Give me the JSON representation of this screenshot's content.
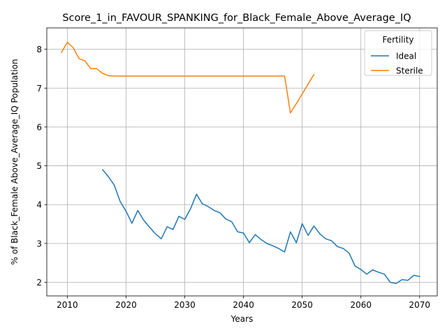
{
  "chart_data": {
    "type": "line",
    "title": "Score_1_in_FAVOUR_SPANKING_for_Black_Female_Above_Average_IQ",
    "xlabel": "Years",
    "ylabel": "% of Black_Female Above_Average_IQ Population",
    "xlim": [
      2006.5,
      2073
    ],
    "ylim": [
      1.65,
      8.55
    ],
    "xticks": [
      2010,
      2020,
      2030,
      2040,
      2050,
      2060,
      2070
    ],
    "yticks": [
      2,
      3,
      4,
      5,
      6,
      7,
      8
    ],
    "grid": true,
    "legend": {
      "title": "Fertility",
      "position": "top-right"
    },
    "series": [
      {
        "name": "Ideal",
        "color": "#1f77b4",
        "x": [
          2016,
          2017,
          2018,
          2019,
          2020,
          2021,
          2022,
          2023,
          2024,
          2025,
          2026,
          2027,
          2028,
          2029,
          2030,
          2031,
          2032,
          2033,
          2034,
          2035,
          2036,
          2037,
          2038,
          2039,
          2040,
          2041,
          2042,
          2043,
          2044,
          2045,
          2046,
          2047,
          2048,
          2049,
          2050,
          2051,
          2052,
          2053,
          2054,
          2055,
          2056,
          2057,
          2058,
          2059,
          2060,
          2061,
          2062,
          2063,
          2064,
          2065,
          2066,
          2067,
          2068,
          2069,
          2070
        ],
        "y": [
          4.9,
          4.72,
          4.5,
          4.08,
          3.83,
          3.52,
          3.85,
          3.6,
          3.42,
          3.25,
          3.12,
          3.43,
          3.36,
          3.7,
          3.62,
          3.9,
          4.27,
          4.02,
          3.95,
          3.85,
          3.79,
          3.63,
          3.56,
          3.3,
          3.27,
          3.02,
          3.23,
          3.1,
          3.0,
          2.94,
          2.87,
          2.78,
          3.3,
          3.02,
          3.51,
          3.21,
          3.45,
          3.25,
          3.12,
          3.07,
          2.92,
          2.87,
          2.75,
          2.42,
          2.33,
          2.21,
          2.32,
          2.26,
          2.21,
          2.0,
          1.97,
          2.07,
          2.05,
          2.18,
          2.15
        ]
      },
      {
        "name": "Sterile",
        "color": "#ff7f0e",
        "x": [
          2009,
          2010,
          2011,
          2012,
          2013,
          2014,
          2015,
          2016,
          2017,
          2018,
          2019,
          2020,
          2021,
          2022,
          2023,
          2024,
          2025,
          2026,
          2027,
          2028,
          2029,
          2030,
          2031,
          2032,
          2033,
          2034,
          2035,
          2036,
          2037,
          2038,
          2039,
          2040,
          2041,
          2042,
          2043,
          2044,
          2045,
          2046,
          2047,
          2048,
          2049,
          2050,
          2051,
          2052
        ],
        "y": [
          7.92,
          8.18,
          8.04,
          7.76,
          7.7,
          7.5,
          7.5,
          7.38,
          7.32,
          7.31,
          7.31,
          7.31,
          7.31,
          7.31,
          7.31,
          7.31,
          7.31,
          7.31,
          7.31,
          7.31,
          7.31,
          7.31,
          7.31,
          7.31,
          7.31,
          7.31,
          7.31,
          7.31,
          7.31,
          7.31,
          7.31,
          7.31,
          7.31,
          7.31,
          7.31,
          7.31,
          7.31,
          7.31,
          7.31,
          6.36,
          6.6,
          6.85,
          7.1,
          7.35
        ]
      }
    ]
  }
}
